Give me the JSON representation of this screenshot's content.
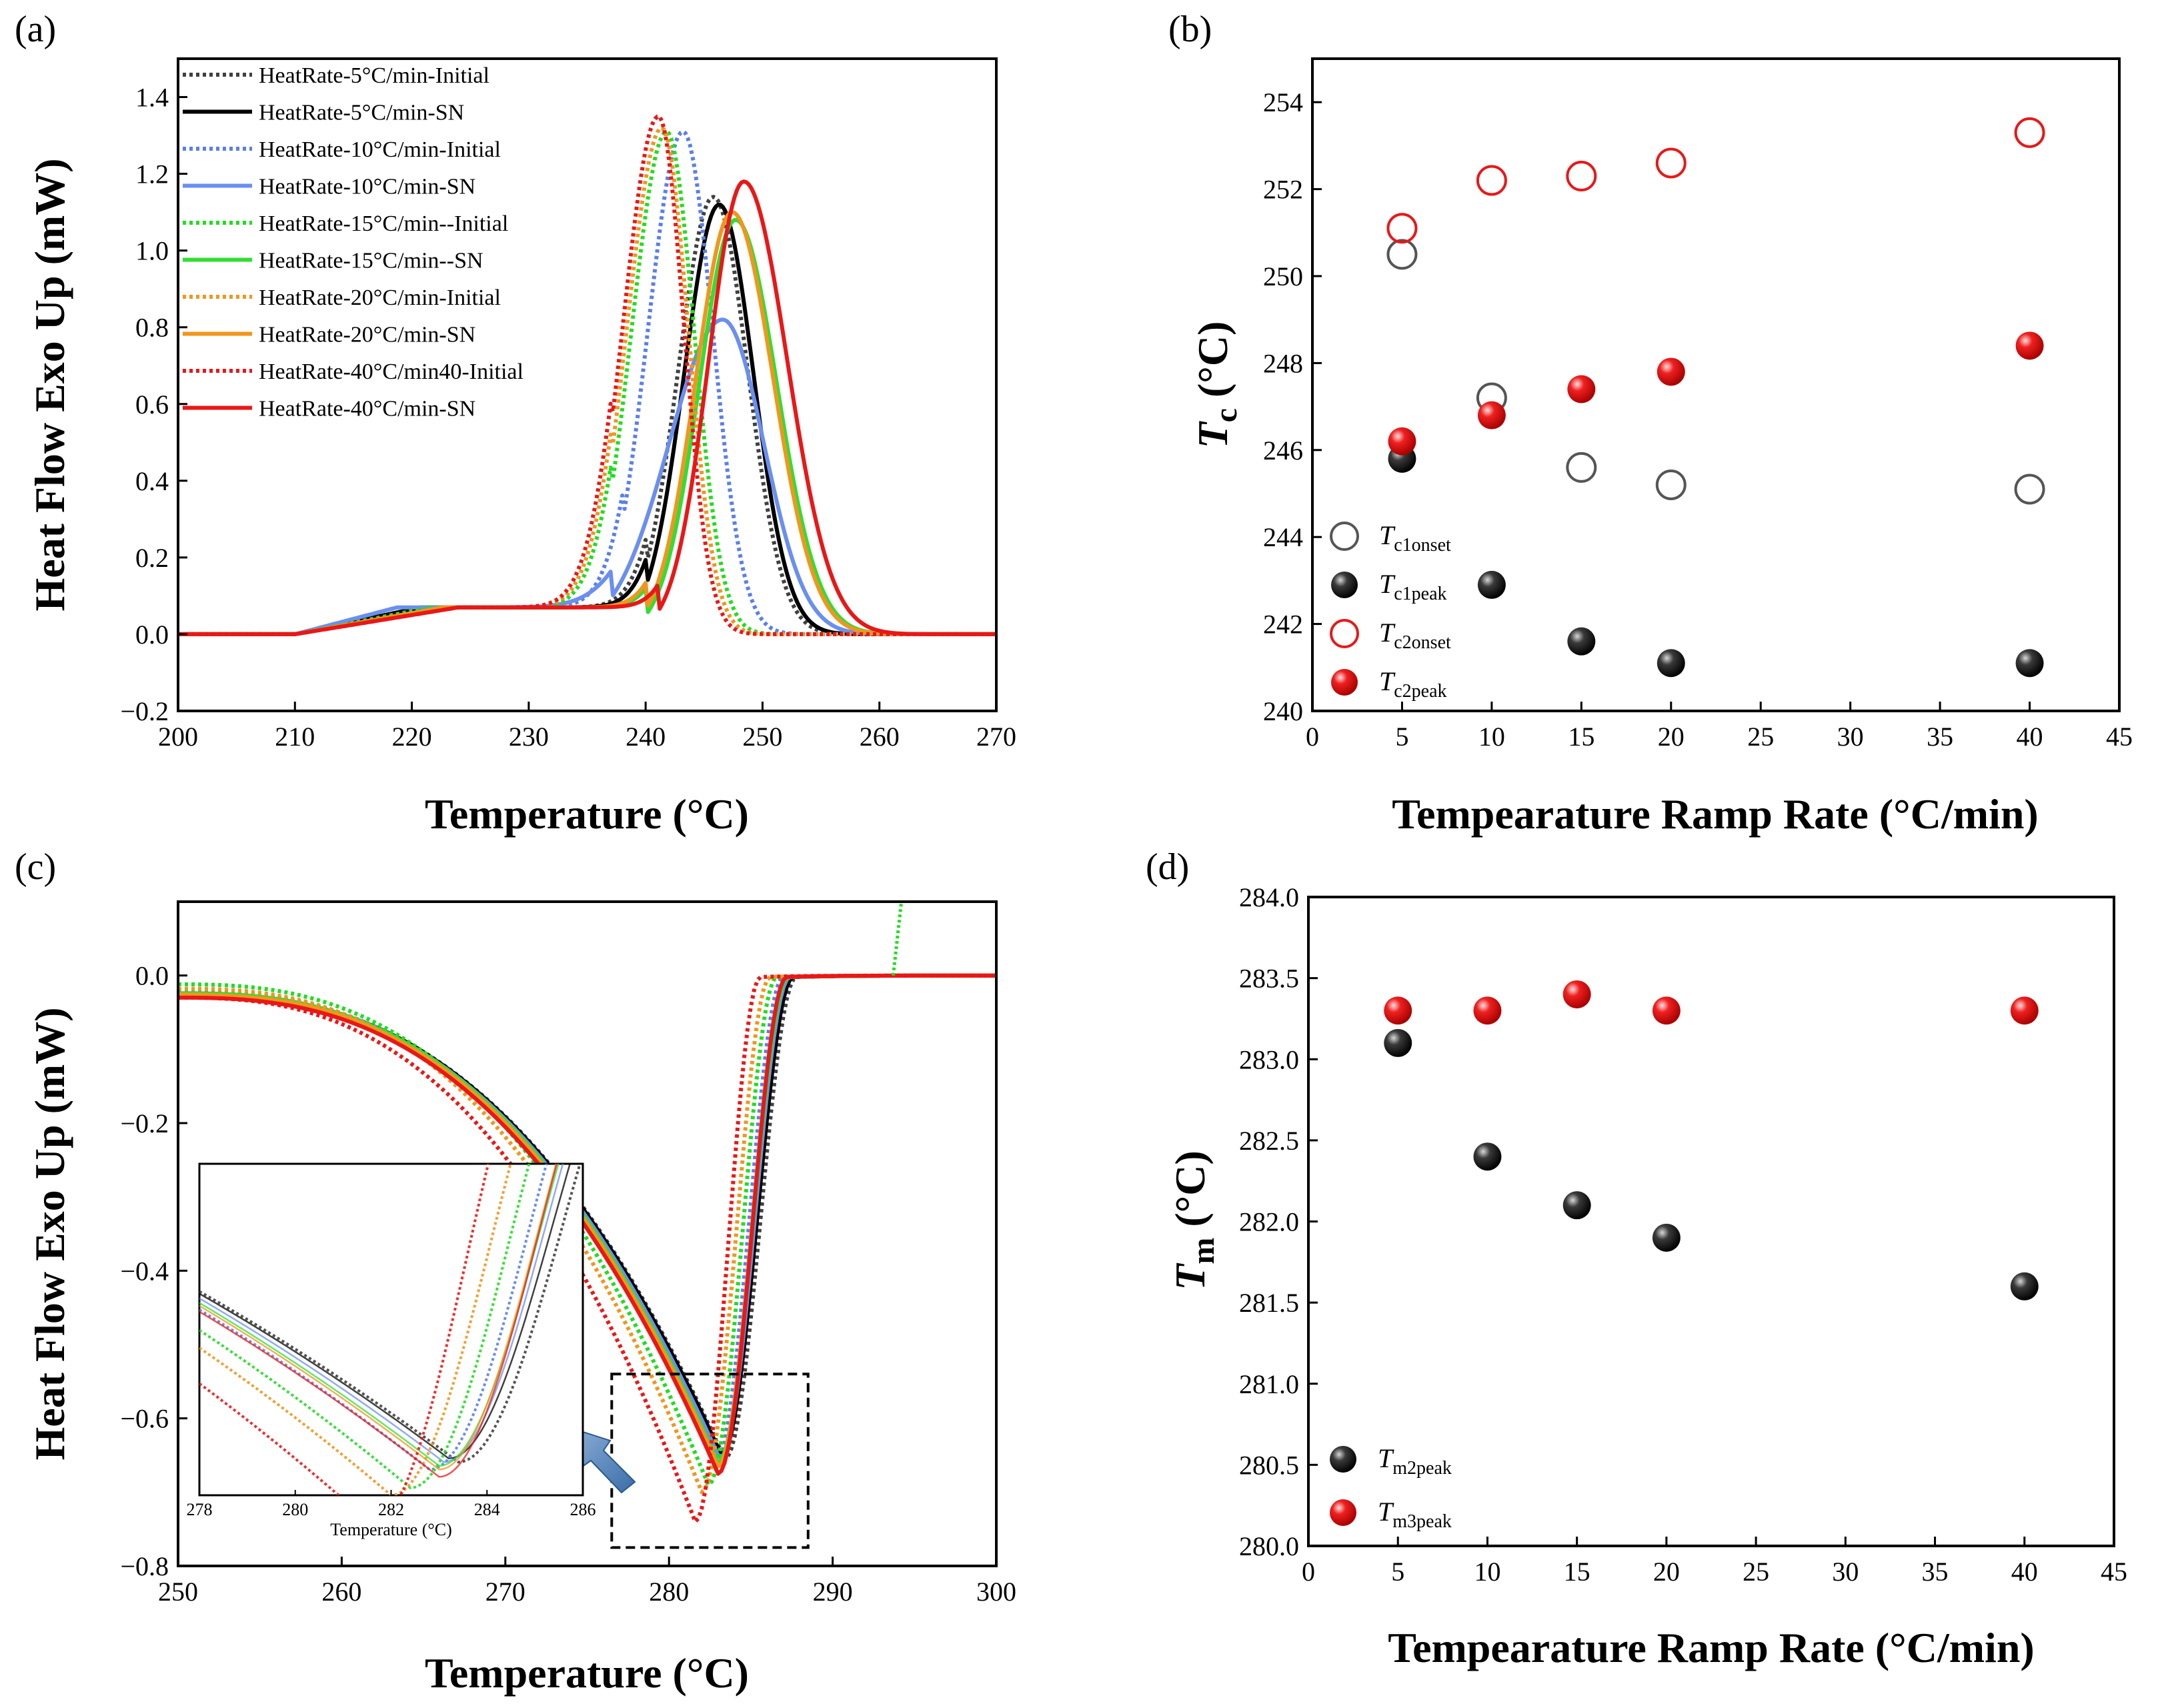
{
  "figure": {
    "panel_labels": [
      "(a)",
      "(b)",
      "(c)",
      "(d)"
    ]
  },
  "chart_data": [
    {
      "id": "a",
      "type": "line",
      "label": "(a)",
      "xlabel": "Temperature (°C)",
      "ylabel": "Heat Flow Exo Up (mW)",
      "xlim": [
        200,
        270
      ],
      "ylim": [
        -0.2,
        1.5
      ],
      "xticks": [
        200,
        210,
        220,
        230,
        240,
        250,
        260,
        270
      ],
      "yticks": [
        -0.2,
        0.0,
        0.2,
        0.4,
        0.6,
        0.8,
        1.0,
        1.2,
        1.4
      ],
      "ytick_labels": [
        "−0.2",
        "0.0",
        "0.2",
        "0.4",
        "0.6",
        "0.8",
        "1.0",
        "1.2",
        "1.4"
      ],
      "series": [
        {
          "name": "HeatRate-5°C/min-Initial",
          "color": "#404040",
          "dashed": true,
          "peak_x": 245.8,
          "peak_y": 1.14,
          "left_width": 3.0,
          "right_width": 3.0,
          "pre_slope": 0.006,
          "onset": 234
        },
        {
          "name": "HeatRate-5°C/min-SN",
          "color": "#000000",
          "dashed": false,
          "peak_x": 246.3,
          "peak_y": 1.12,
          "left_width": 3.0,
          "right_width": 3.0,
          "pre_slope": 0.0065,
          "onset": 234
        },
        {
          "name": "HeatRate-10°C/min-Initial",
          "color": "#5b7fe8",
          "dashed": true,
          "peak_x": 243.2,
          "peak_y": 1.31,
          "left_width": 3.0,
          "right_width": 2.6,
          "pre_slope": 0.006,
          "onset": 232
        },
        {
          "name": "HeatRate-10°C/min-SN",
          "color": "#6b8ff0",
          "dashed": false,
          "peak_x": 246.6,
          "peak_y": 0.82,
          "left_width": 4.6,
          "right_width": 3.6,
          "pre_slope": 0.008,
          "onset": 231
        },
        {
          "name": "HeatRate-15°C/min--Initial",
          "color": "#22dd22",
          "dashed": true,
          "peak_x": 241.8,
          "peak_y": 1.31,
          "left_width": 3.0,
          "right_width": 2.4,
          "pre_slope": 0.006,
          "onset": 231
        },
        {
          "name": "HeatRate-15°C/min--SN",
          "color": "#33dd33",
          "dashed": false,
          "peak_x": 247.7,
          "peak_y": 1.08,
          "left_width": 3.1,
          "right_width": 3.6,
          "pre_slope": 0.0055,
          "onset": 234
        },
        {
          "name": "HeatRate-20°C/min-Initial",
          "color": "#f0961e",
          "dashed": true,
          "peak_x": 241.4,
          "peak_y": 1.32,
          "left_width": 3.0,
          "right_width": 2.3,
          "pre_slope": 0.0055,
          "onset": 231
        },
        {
          "name": "HeatRate-20°C/min-SN",
          "color": "#f0961e",
          "dashed": false,
          "peak_x": 247.4,
          "peak_y": 1.1,
          "left_width": 3.1,
          "right_width": 3.6,
          "pre_slope": 0.0055,
          "onset": 234
        },
        {
          "name": "HeatRate-40°C/min40-Initial",
          "color": "#e81818",
          "dashed": true,
          "peak_x": 241.1,
          "peak_y": 1.35,
          "left_width": 3.0,
          "right_width": 2.2,
          "pre_slope": 0.005,
          "onset": 231
        },
        {
          "name": "HeatRate-40°C/min-SN",
          "color": "#e81818",
          "dashed": false,
          "peak_x": 248.4,
          "peak_y": 1.18,
          "left_width": 3.0,
          "right_width": 3.8,
          "pre_slope": 0.005,
          "onset": 235
        }
      ]
    },
    {
      "id": "b",
      "type": "scatter",
      "label": "(b)",
      "xlabel": "Tempearature Ramp Rate (°C/min)",
      "ylabel_main": "T",
      "ylabel_sub": "c",
      "ylabel_unit": " (°C)",
      "xlim": [
        0,
        45
      ],
      "ylim": [
        240,
        255
      ],
      "xticks": [
        0,
        5,
        10,
        15,
        20,
        25,
        30,
        35,
        40,
        45
      ],
      "yticks": [
        240,
        242,
        244,
        246,
        248,
        250,
        252,
        254
      ],
      "series": [
        {
          "name_main": "T",
          "name_sub": "c1onset",
          "style": "open",
          "color": "#555555",
          "x": [
            5,
            10,
            15,
            20,
            40
          ],
          "y": [
            250.5,
            247.2,
            245.6,
            245.2,
            245.1
          ]
        },
        {
          "name_main": "T",
          "name_sub": "c1peak",
          "style": "filled",
          "color": "#111111",
          "x": [
            5,
            10,
            15,
            20,
            40
          ],
          "y": [
            245.8,
            242.9,
            241.6,
            241.1,
            241.1
          ]
        },
        {
          "name_main": "T",
          "name_sub": "c2onset",
          "style": "open",
          "color": "#e81818",
          "x": [
            5,
            10,
            15,
            20,
            40
          ],
          "y": [
            251.1,
            252.2,
            252.3,
            252.6,
            253.3
          ]
        },
        {
          "name_main": "T",
          "name_sub": "c2peak",
          "style": "filled",
          "color": "#e81818",
          "x": [
            5,
            10,
            15,
            20,
            40
          ],
          "y": [
            246.2,
            246.8,
            247.4,
            247.8,
            248.4
          ]
        }
      ]
    },
    {
      "id": "c",
      "type": "line",
      "label": "(c)",
      "xlabel": "Temperature (°C)",
      "ylabel": "Heat Flow Exo Up (mW)",
      "xlim": [
        250,
        300
      ],
      "ylim": [
        -0.8,
        0.1
      ],
      "xticks": [
        250,
        260,
        270,
        280,
        290,
        300
      ],
      "yticks": [
        -0.8,
        -0.6,
        -0.4,
        -0.2,
        0.0
      ],
      "ytick_labels": [
        "−0.8",
        "−0.6",
        "−0.4",
        "−0.2",
        "0.0"
      ],
      "series": [
        {
          "name": "HeatRate-5°C/min-Initial",
          "color": "#404040",
          "dashed": true,
          "min_x": 283.4,
          "min_y": -0.655,
          "end_x": 287.8,
          "start_y": -0.025
        },
        {
          "name": "HeatRate-5°C/min-SN",
          "color": "#000000",
          "dashed": false,
          "min_x": 283.2,
          "min_y": -0.65,
          "end_x": 287.6,
          "start_y": -0.025
        },
        {
          "name": "HeatRate-10°C/min-Initial",
          "color": "#5b7fe8",
          "dashed": true,
          "min_x": 282.8,
          "min_y": -0.665,
          "end_x": 287.0,
          "start_y": -0.022
        },
        {
          "name": "HeatRate-10°C/min-SN",
          "color": "#6b8ff0",
          "dashed": false,
          "min_x": 283.1,
          "min_y": -0.655,
          "end_x": 287.4,
          "start_y": -0.025
        },
        {
          "name": "HeatRate-15°C/min--Initial",
          "color": "#22dd22",
          "dashed": true,
          "min_x": 282.4,
          "min_y": -0.69,
          "end_x": 286.6,
          "start_y": -0.012
        },
        {
          "name": "HeatRate-15°C/min--SN",
          "color": "#33dd33",
          "dashed": false,
          "min_x": 283.0,
          "min_y": -0.66,
          "end_x": 287.3,
          "start_y": -0.024
        },
        {
          "name": "HeatRate-20°C/min-Initial",
          "color": "#f0961e",
          "dashed": true,
          "min_x": 282.0,
          "min_y": -0.7,
          "end_x": 286.2,
          "start_y": -0.018
        },
        {
          "name": "HeatRate-20°C/min-SN",
          "color": "#f0961e",
          "dashed": false,
          "min_x": 283.0,
          "min_y": -0.665,
          "end_x": 287.2,
          "start_y": -0.026
        },
        {
          "name": "HeatRate-40°C/min40-Initial",
          "color": "#e81818",
          "dashed": true,
          "min_x": 281.6,
          "min_y": -0.74,
          "end_x": 285.6,
          "start_y": -0.03
        },
        {
          "name": "HeatRate-40°C/min-SN",
          "color": "#e81818",
          "dashed": false,
          "min_x": 283.0,
          "min_y": -0.675,
          "end_x": 287.2,
          "start_y": -0.03
        }
      ],
      "inset": {
        "xlabel": "Temperature (°C)",
        "xlim": [
          278,
          286
        ],
        "xticks": [
          278,
          280,
          282,
          284,
          286
        ],
        "ylim": [
          -0.7,
          -0.25
        ],
        "zoom_box_x": [
          276.5,
          288.5
        ],
        "zoom_box_y": [
          -0.775,
          -0.54
        ]
      }
    },
    {
      "id": "d",
      "type": "scatter",
      "label": "(d)",
      "xlabel": "Tempearature Ramp Rate (°C/min)",
      "ylabel_main": "T",
      "ylabel_sub": "m",
      "ylabel_unit": " (°C)",
      "xlim": [
        0,
        45
      ],
      "ylim": [
        280,
        284
      ],
      "xticks": [
        0,
        5,
        10,
        15,
        20,
        25,
        30,
        35,
        40,
        45
      ],
      "yticks": [
        280.0,
        280.5,
        281.0,
        281.5,
        282.0,
        282.5,
        283.0,
        283.5,
        284.0
      ],
      "series": [
        {
          "name_main": "T",
          "name_sub": "m2peak",
          "style": "filled",
          "color": "#111111",
          "x": [
            5,
            10,
            15,
            20,
            40
          ],
          "y": [
            283.1,
            282.4,
            282.1,
            281.9,
            281.6
          ]
        },
        {
          "name_main": "T",
          "name_sub": "m3peak",
          "style": "filled",
          "color": "#e81818",
          "x": [
            5,
            10,
            15,
            20,
            40
          ],
          "y": [
            283.3,
            283.3,
            283.4,
            283.3,
            283.3
          ]
        }
      ]
    }
  ]
}
